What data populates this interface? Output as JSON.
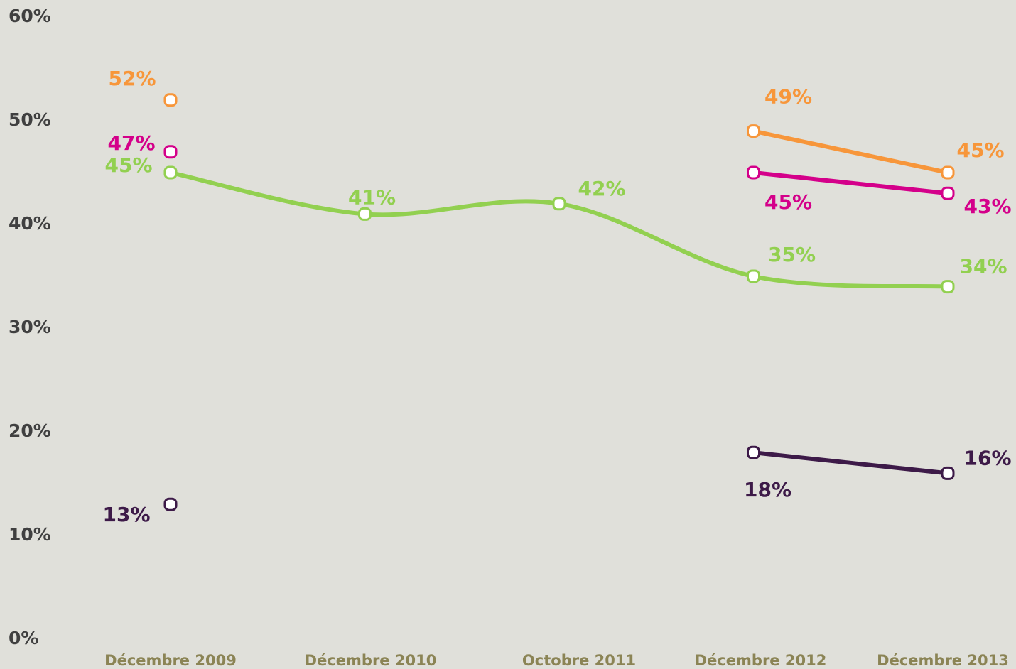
{
  "chart_data": {
    "type": "line",
    "smooth": true,
    "categories": [
      "Décembre 2009",
      "Décembre 2010",
      "Octobre 2011",
      "Décembre 2012",
      "Décembre 2013"
    ],
    "series": [
      {
        "color": "#92d050",
        "values": [
          45,
          41,
          42,
          35,
          34
        ],
        "value_labels": [
          "45%",
          "41%",
          "42%",
          "35%",
          "34%"
        ]
      },
      {
        "color": "#f7963a",
        "values": [
          52,
          null,
          null,
          49,
          45
        ],
        "value_labels": [
          "52%",
          null,
          null,
          "49%",
          "45%"
        ]
      },
      {
        "color": "#d4008a",
        "values": [
          47,
          null,
          null,
          45,
          43
        ],
        "value_labels": [
          "47%",
          null,
          null,
          "45%",
          "43%"
        ]
      },
      {
        "color": "#3d1a48",
        "values": [
          13,
          null,
          null,
          18,
          16
        ],
        "value_labels": [
          "13%",
          null,
          null,
          "18%",
          "16%"
        ]
      }
    ],
    "ylim": [
      0,
      60
    ],
    "yticks": [
      {
        "value": 0,
        "label": "0%"
      },
      {
        "value": 10,
        "label": "10%"
      },
      {
        "value": 20,
        "label": "20%"
      },
      {
        "value": 30,
        "label": "30%"
      },
      {
        "value": 40,
        "label": "40%"
      },
      {
        "value": 50,
        "label": "50%"
      },
      {
        "value": 60,
        "label": "60%"
      }
    ],
    "grid": false
  }
}
